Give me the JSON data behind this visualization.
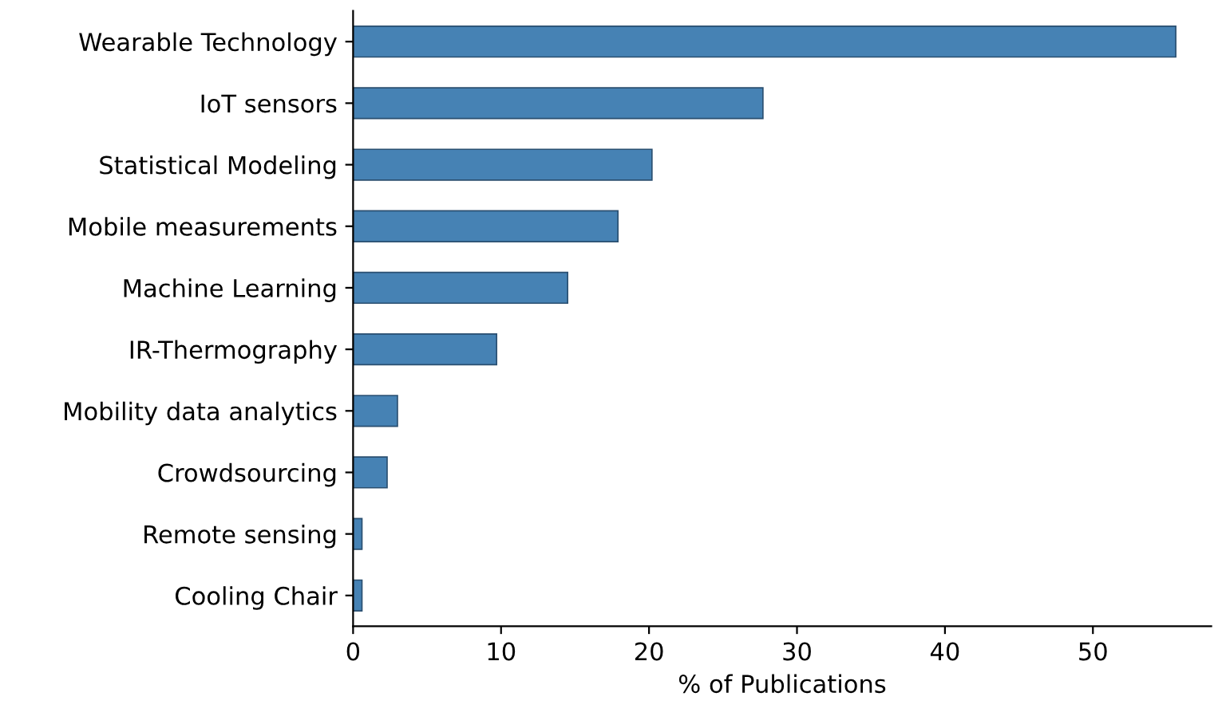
{
  "chart_data": {
    "type": "bar",
    "orientation": "horizontal",
    "xlabel": "% of Publications",
    "categories": [
      "Wearable Technology",
      "IoT sensors",
      "Statistical Modeling",
      "Mobile measurements",
      "Machine Learning",
      "IR-Thermography",
      "Mobility data analytics",
      "Crowdsourcing",
      "Remote sensing",
      "Cooling Chair"
    ],
    "values": [
      55.6,
      27.7,
      20.2,
      17.9,
      14.5,
      9.7,
      3.0,
      2.3,
      0.6,
      0.6
    ],
    "color": "#4682b4",
    "xlim": [
      0,
      58
    ],
    "xticks": [
      0,
      10,
      20,
      30,
      40,
      50
    ],
    "grid": false,
    "legend": false
  }
}
